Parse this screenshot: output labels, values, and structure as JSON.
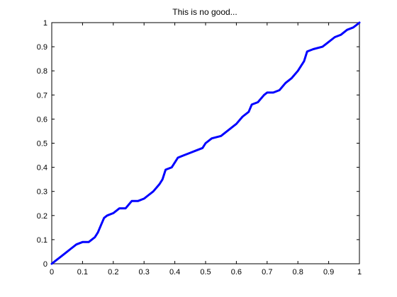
{
  "chart_data": {
    "type": "line",
    "title": "This is no good...",
    "xlabel": "",
    "ylabel": "",
    "xlim": [
      0,
      1
    ],
    "ylim": [
      0,
      1
    ],
    "xticks": [
      "0",
      "0.1",
      "0.2",
      "0.3",
      "0.4",
      "0.5",
      "0.6",
      "0.7",
      "0.8",
      "0.9",
      "1"
    ],
    "yticks": [
      "0",
      "0.1",
      "0.2",
      "0.3",
      "0.4",
      "0.5",
      "0.6",
      "0.7",
      "0.8",
      "0.9",
      "1"
    ],
    "tick_values": [
      0,
      0.1,
      0.2,
      0.3,
      0.4,
      0.5,
      0.6,
      0.7,
      0.8,
      0.9,
      1.0
    ],
    "grid": false,
    "line_color": "#0000ff",
    "series": [
      {
        "x": [
          0.0,
          0.01,
          0.03,
          0.05,
          0.06,
          0.08,
          0.1,
          0.12,
          0.13,
          0.14,
          0.15,
          0.16,
          0.17,
          0.18,
          0.2,
          0.22,
          0.24,
          0.26,
          0.28,
          0.3,
          0.31,
          0.33,
          0.35,
          0.36,
          0.37,
          0.39,
          0.4,
          0.41,
          0.43,
          0.45,
          0.47,
          0.49,
          0.5,
          0.52,
          0.55,
          0.57,
          0.59,
          0.6,
          0.62,
          0.64,
          0.65,
          0.67,
          0.69,
          0.7,
          0.72,
          0.74,
          0.76,
          0.78,
          0.8,
          0.81,
          0.82,
          0.83,
          0.85,
          0.88,
          0.89,
          0.9,
          0.92,
          0.94,
          0.96,
          0.98,
          0.99,
          1.0
        ],
        "y": [
          0.0,
          0.01,
          0.03,
          0.05,
          0.06,
          0.08,
          0.09,
          0.09,
          0.1,
          0.11,
          0.13,
          0.16,
          0.19,
          0.2,
          0.21,
          0.23,
          0.23,
          0.26,
          0.26,
          0.27,
          0.28,
          0.3,
          0.33,
          0.35,
          0.39,
          0.4,
          0.42,
          0.44,
          0.45,
          0.46,
          0.47,
          0.48,
          0.5,
          0.52,
          0.53,
          0.55,
          0.57,
          0.58,
          0.61,
          0.63,
          0.66,
          0.67,
          0.7,
          0.71,
          0.71,
          0.72,
          0.75,
          0.77,
          0.8,
          0.82,
          0.84,
          0.88,
          0.89,
          0.9,
          0.91,
          0.92,
          0.94,
          0.95,
          0.97,
          0.98,
          0.99,
          1.0
        ]
      }
    ]
  }
}
